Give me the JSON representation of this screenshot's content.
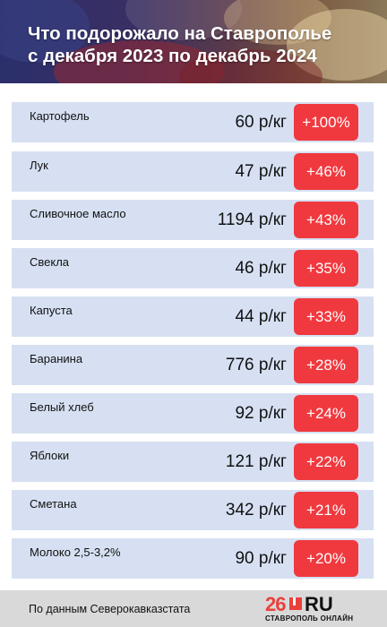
{
  "header": {
    "title_line1": "Что подорожало на Ставрополье",
    "title_line2": "с декабря 2023 по декабрь 2024"
  },
  "rows": [
    {
      "name": "Картофель",
      "price": "60 р/кг",
      "change": "+100%"
    },
    {
      "name": "Лук",
      "price": "47 р/кг",
      "change": "+46%"
    },
    {
      "name": "Сливочное масло",
      "price": "1194 р/кг",
      "change": "+43%"
    },
    {
      "name": "Свекла",
      "price": "46 р/кг",
      "change": "+35%"
    },
    {
      "name": "Капуста",
      "price": "44 р/кг",
      "change": "+33%"
    },
    {
      "name": "Баранина",
      "price": "776 р/кг",
      "change": "+28%"
    },
    {
      "name": "Белый хлеб",
      "price": "92 р/кг",
      "change": "+24%"
    },
    {
      "name": "Яблоки",
      "price": "121 р/кг",
      "change": "+22%"
    },
    {
      "name": "Сметана",
      "price": "342 р/кг",
      "change": "+21%"
    },
    {
      "name": "Молоко 2,5-3,2%",
      "price": "90 р/кг",
      "change": "+20%"
    }
  ],
  "footer": {
    "source": "По данным Северокавказстата",
    "logo_num": "26",
    "logo_ru": "RU",
    "logo_sub": "СТАВРОПОЛЬ ОНЛАЙН"
  },
  "colors": {
    "row_bg": "#d6e0f2",
    "badge_bg": "#f0393f",
    "footer_bg": "#d9d9d9",
    "logo_red": "#e8413c"
  }
}
